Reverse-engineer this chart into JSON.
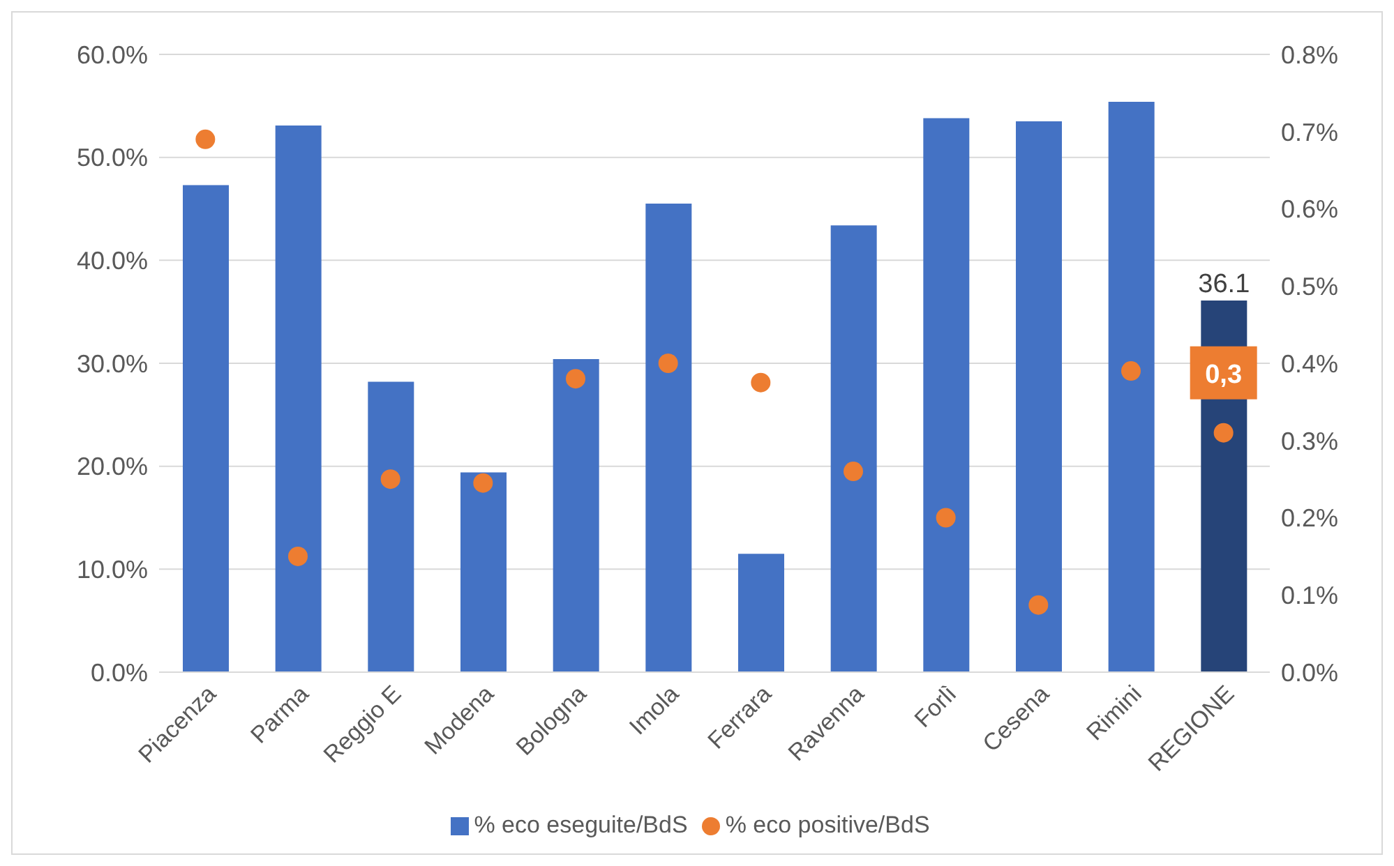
{
  "chart_data": {
    "type": "bar",
    "categories": [
      "Piacenza",
      "Parma",
      "Reggio E",
      "Modena",
      "Bologna",
      "Imola",
      "Ferrara",
      "Ravenna",
      "Forlì",
      "Cesena",
      "Rimini",
      "REGIONE"
    ],
    "series": [
      {
        "name": "% eco eseguite/BdS",
        "color": "#4472c4",
        "colors": [
          "#4472c4",
          "#4472c4",
          "#4472c4",
          "#4472c4",
          "#4472c4",
          "#4472c4",
          "#4472c4",
          "#4472c4",
          "#4472c4",
          "#4472c4",
          "#4472c4",
          "#264478"
        ],
        "values": [
          47.3,
          53.1,
          28.2,
          19.4,
          30.4,
          45.5,
          11.5,
          43.4,
          53.8,
          53.5,
          55.4,
          36.1
        ],
        "value_labels": [
          null,
          null,
          null,
          null,
          null,
          null,
          null,
          null,
          null,
          null,
          null,
          "36.1"
        ]
      },
      {
        "name": "% eco positive/BdS",
        "type": "scatter",
        "axis": "y2",
        "color": "#ed7d31",
        "values": [
          0.69,
          0.15,
          0.25,
          0.245,
          0.38,
          0.4,
          0.375,
          0.26,
          0.2,
          0.087,
          0.39,
          0.31
        ],
        "value_labels": [
          null,
          null,
          null,
          null,
          null,
          null,
          null,
          null,
          null,
          null,
          null,
          "0,3"
        ]
      }
    ],
    "ylim": [
      0,
      60
    ],
    "yticks": [
      {
        "value": 0,
        "label": "0.0%"
      },
      {
        "value": 10,
        "label": "10.0%"
      },
      {
        "value": 20,
        "label": "20.0%"
      },
      {
        "value": 30,
        "label": "30.0%"
      },
      {
        "value": 40,
        "label": "40.0%"
      },
      {
        "value": 50,
        "label": "50.0%"
      },
      {
        "value": 60,
        "label": "60.0%"
      }
    ],
    "y2lim": [
      0,
      0.8
    ],
    "y2ticks": [
      {
        "value": 0,
        "label": "0.0%"
      },
      {
        "value": 0.1,
        "label": "0.1%"
      },
      {
        "value": 0.2,
        "label": "0.2%"
      },
      {
        "value": 0.3,
        "label": "0.3%"
      },
      {
        "value": 0.4,
        "label": "0.4%"
      },
      {
        "value": 0.5,
        "label": "0.5%"
      },
      {
        "value": 0.6,
        "label": "0.6%"
      },
      {
        "value": 0.7,
        "label": "0.7%"
      },
      {
        "value": 0.8,
        "label": "0.8%"
      }
    ],
    "grid": "y",
    "legend": "bottom",
    "marker": "circle"
  }
}
